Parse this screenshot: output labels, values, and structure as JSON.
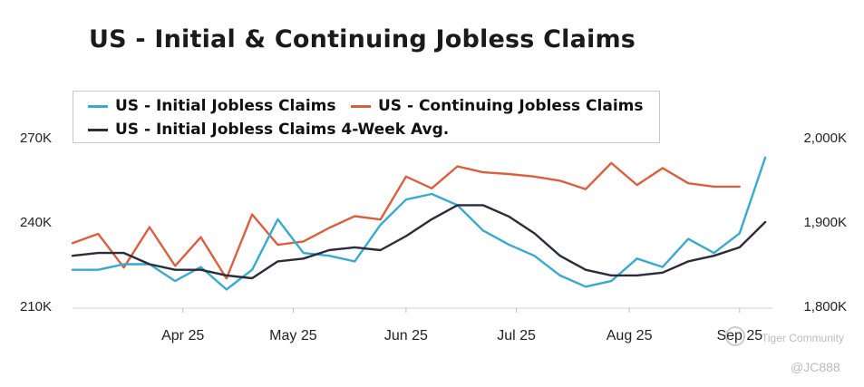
{
  "title": "US - Initial & Continuing Jobless Claims",
  "legend": {
    "initial": "US - Initial Jobless Claims",
    "continuing": "US - Continuing Jobless Claims",
    "avg": "US - Initial Jobless Claims 4-Week Avg."
  },
  "watermark": {
    "brand": "Tiger Community",
    "user": "@JC888"
  },
  "chart_data": {
    "type": "line",
    "title": "US - Initial & Continuing Jobless Claims",
    "x_ticks": [
      {
        "label": "Apr 25",
        "index": 4.3
      },
      {
        "label": "May 25",
        "index": 8.6
      },
      {
        "label": "Jun 25",
        "index": 13.0
      },
      {
        "label": "Jul 25",
        "index": 17.3
      },
      {
        "label": "Aug 25",
        "index": 21.7
      },
      {
        "label": "Sep 25",
        "index": 26.0
      }
    ],
    "y_left": {
      "min": 210000,
      "max": 270000,
      "ticks": [
        {
          "v": 270000,
          "label": "270K"
        },
        {
          "v": 240000,
          "label": "240K"
        },
        {
          "v": 210000,
          "label": "210K"
        }
      ]
    },
    "y_right": {
      "min": 1800000,
      "max": 2000000,
      "ticks": [
        {
          "v": 2000000,
          "label": "2,000K"
        },
        {
          "v": 1900000,
          "label": "1,900K"
        },
        {
          "v": 1800000,
          "label": "1,800K"
        }
      ]
    },
    "series": [
      {
        "name": "US - Initial Jobless Claims",
        "axis": "left",
        "color": "#3aa9cf",
        "values": [
          223000,
          223000,
          225000,
          225000,
          219000,
          224000,
          216000,
          223000,
          241000,
          229000,
          228000,
          226000,
          239000,
          248000,
          250000,
          246000,
          237000,
          232000,
          228000,
          221000,
          217000,
          219000,
          227000,
          224000,
          234000,
          229000,
          236000,
          263000
        ]
      },
      {
        "name": "US - Continuing Jobless Claims",
        "axis": "right",
        "color": "#d9603f",
        "values": [
          1875000,
          1886000,
          1846000,
          1894000,
          1848000,
          1882000,
          1833000,
          1909000,
          1873000,
          1877000,
          1893000,
          1907000,
          1903000,
          1954000,
          1940000,
          1966000,
          1959000,
          1957000,
          1954000,
          1949000,
          1939000,
          1970000,
          1944000,
          1964000,
          1946000,
          1942000,
          1942000
        ]
      },
      {
        "name": "US - Initial Jobless Claims 4-Week Avg.",
        "axis": "left",
        "color": "#2b2b3c",
        "values": [
          228000,
          229000,
          229000,
          225000,
          223000,
          223000,
          221000,
          220000,
          226000,
          227000,
          230000,
          231000,
          230000,
          235000,
          241000,
          246000,
          246000,
          242000,
          236000,
          228000,
          223000,
          221000,
          221000,
          222000,
          226000,
          228000,
          231000,
          240000
        ]
      }
    ]
  }
}
